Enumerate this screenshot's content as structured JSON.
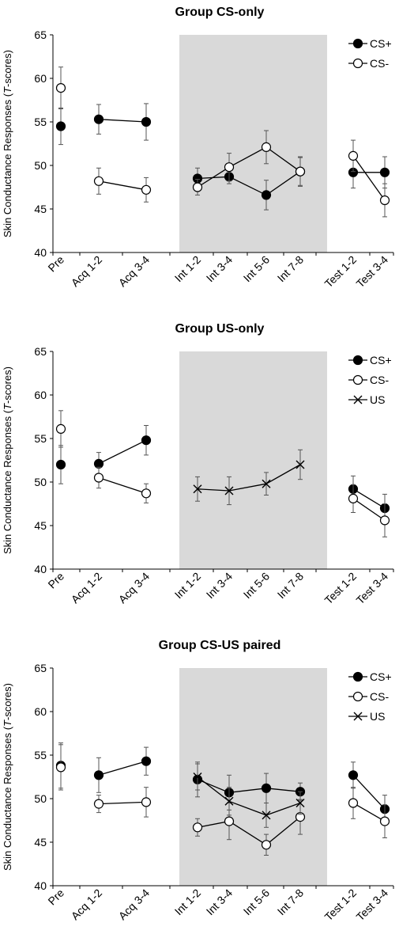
{
  "chart_data": [
    {
      "type": "line",
      "title": "Group CS-only",
      "ylabel_main": "Skin Conductance Responses (",
      "ylabel_italic": "T",
      "ylabel_tail": "-scores)",
      "ylim": [
        40,
        65
      ],
      "yticks": [
        "40",
        "45",
        "50",
        "55",
        "60",
        "65"
      ],
      "categories": [
        "Pre",
        "Acq 1-2",
        "Acq 3-4",
        "Int 1-2",
        "Int 3-4",
        "Int 5-6",
        "Int 7-8",
        "Test 1-2",
        "Test 3-4"
      ],
      "shaded_categories": [
        "Int 1-2",
        "Int 3-4",
        "Int 5-6",
        "Int 7-8"
      ],
      "legend_position": "top-right",
      "series": [
        {
          "name": "CS+",
          "marker": "filled-circle",
          "values": [
            54.5,
            55.3,
            55.0,
            48.5,
            48.7,
            46.6,
            49.3,
            49.2,
            49.2
          ],
          "errors": [
            2.1,
            1.7,
            2.1,
            1.2,
            0.8,
            1.7,
            1.6,
            1.8,
            1.8
          ],
          "segments": [
            [
              0,
              0
            ],
            [
              1,
              2
            ],
            [
              3,
              6
            ],
            [
              7,
              8
            ]
          ]
        },
        {
          "name": "CS-",
          "marker": "open-circle",
          "values": [
            58.9,
            48.2,
            47.2,
            47.5,
            49.8,
            52.1,
            49.3,
            51.1,
            46.0
          ],
          "errors": [
            2.4,
            1.5,
            1.4,
            0.9,
            1.6,
            1.9,
            1.7,
            1.8,
            1.9
          ],
          "segments": [
            [
              0,
              0
            ],
            [
              1,
              2
            ],
            [
              3,
              6
            ],
            [
              7,
              8
            ]
          ]
        }
      ]
    },
    {
      "type": "line",
      "title": "Group US-only",
      "ylabel_main": "Skin Conductance Responses (",
      "ylabel_italic": "T",
      "ylabel_tail": "-scores)",
      "ylim": [
        40,
        65
      ],
      "yticks": [
        "40",
        "45",
        "50",
        "55",
        "60",
        "65"
      ],
      "categories": [
        "Pre",
        "Acq 1-2",
        "Acq 3-4",
        "Int 1-2",
        "Int 3-4",
        "Int 5-6",
        "Int 7-8",
        "Test 1-2",
        "Test 3-4"
      ],
      "shaded_categories": [
        "Int 1-2",
        "Int 3-4",
        "Int 5-6",
        "Int 7-8"
      ],
      "legend_position": "top-right",
      "series": [
        {
          "name": "CS+",
          "marker": "filled-circle",
          "values": [
            52.0,
            52.1,
            54.8,
            null,
            null,
            null,
            null,
            49.2,
            47.0
          ],
          "errors": [
            2.2,
            1.3,
            1.7,
            0,
            0,
            0,
            0,
            1.5,
            1.6
          ],
          "segments": [
            [
              0,
              0
            ],
            [
              1,
              2
            ],
            [
              7,
              8
            ]
          ]
        },
        {
          "name": "CS-",
          "marker": "open-circle",
          "values": [
            56.1,
            50.5,
            48.7,
            null,
            null,
            null,
            null,
            48.1,
            45.6
          ],
          "errors": [
            2.1,
            1.2,
            1.1,
            0,
            0,
            0,
            0,
            1.6,
            1.9
          ],
          "segments": [
            [
              0,
              0
            ],
            [
              1,
              2
            ],
            [
              7,
              8
            ]
          ]
        },
        {
          "name": "US",
          "marker": "cross",
          "values": [
            null,
            null,
            null,
            49.2,
            49.0,
            49.8,
            52.0,
            null,
            null
          ],
          "errors": [
            0,
            0,
            0,
            1.4,
            1.6,
            1.3,
            1.7,
            0,
            0
          ],
          "segments": [
            [
              3,
              6
            ]
          ]
        }
      ]
    },
    {
      "type": "line",
      "title": "Group CS-US paired",
      "ylabel_main": "Skin Conductance Responses (",
      "ylabel_italic": "T",
      "ylabel_tail": "-scores)",
      "ylim": [
        40,
        65
      ],
      "yticks": [
        "40",
        "45",
        "50",
        "55",
        "60",
        "65"
      ],
      "categories": [
        "Pre",
        "Acq 1-2",
        "Acq 3-4",
        "Int 1-2",
        "Int 3-4",
        "Int 5-6",
        "Int 7-8",
        "Test 1-2",
        "Test 3-4"
      ],
      "shaded_categories": [
        "Int 1-2",
        "Int 3-4",
        "Int 5-6",
        "Int 7-8"
      ],
      "legend_position": "top-right",
      "series": [
        {
          "name": "CS+",
          "marker": "filled-circle",
          "values": [
            53.8,
            52.7,
            54.3,
            52.2,
            50.7,
            51.2,
            50.8,
            52.7,
            48.8
          ],
          "errors": [
            2.6,
            2.0,
            1.6,
            2.0,
            2.0,
            1.7,
            1.0,
            1.5,
            1.6
          ],
          "segments": [
            [
              0,
              0
            ],
            [
              1,
              2
            ],
            [
              3,
              6
            ],
            [
              7,
              8
            ]
          ]
        },
        {
          "name": "CS-",
          "marker": "open-circle",
          "values": [
            53.6,
            49.4,
            49.6,
            46.7,
            47.4,
            44.7,
            47.9,
            49.5,
            47.4
          ],
          "errors": [
            2.6,
            1.0,
            1.7,
            1.0,
            2.1,
            1.2,
            2.0,
            1.8,
            1.9
          ],
          "segments": [
            [
              0,
              0
            ],
            [
              1,
              2
            ],
            [
              3,
              6
            ],
            [
              7,
              8
            ]
          ]
        },
        {
          "name": "US",
          "marker": "cross",
          "values": [
            null,
            null,
            null,
            52.5,
            49.7,
            48.1,
            49.5,
            null,
            null
          ],
          "errors": [
            0,
            0,
            0,
            1.5,
            1.6,
            1.4,
            1.3,
            0,
            0
          ],
          "segments": [
            [
              3,
              6
            ]
          ]
        }
      ]
    }
  ]
}
